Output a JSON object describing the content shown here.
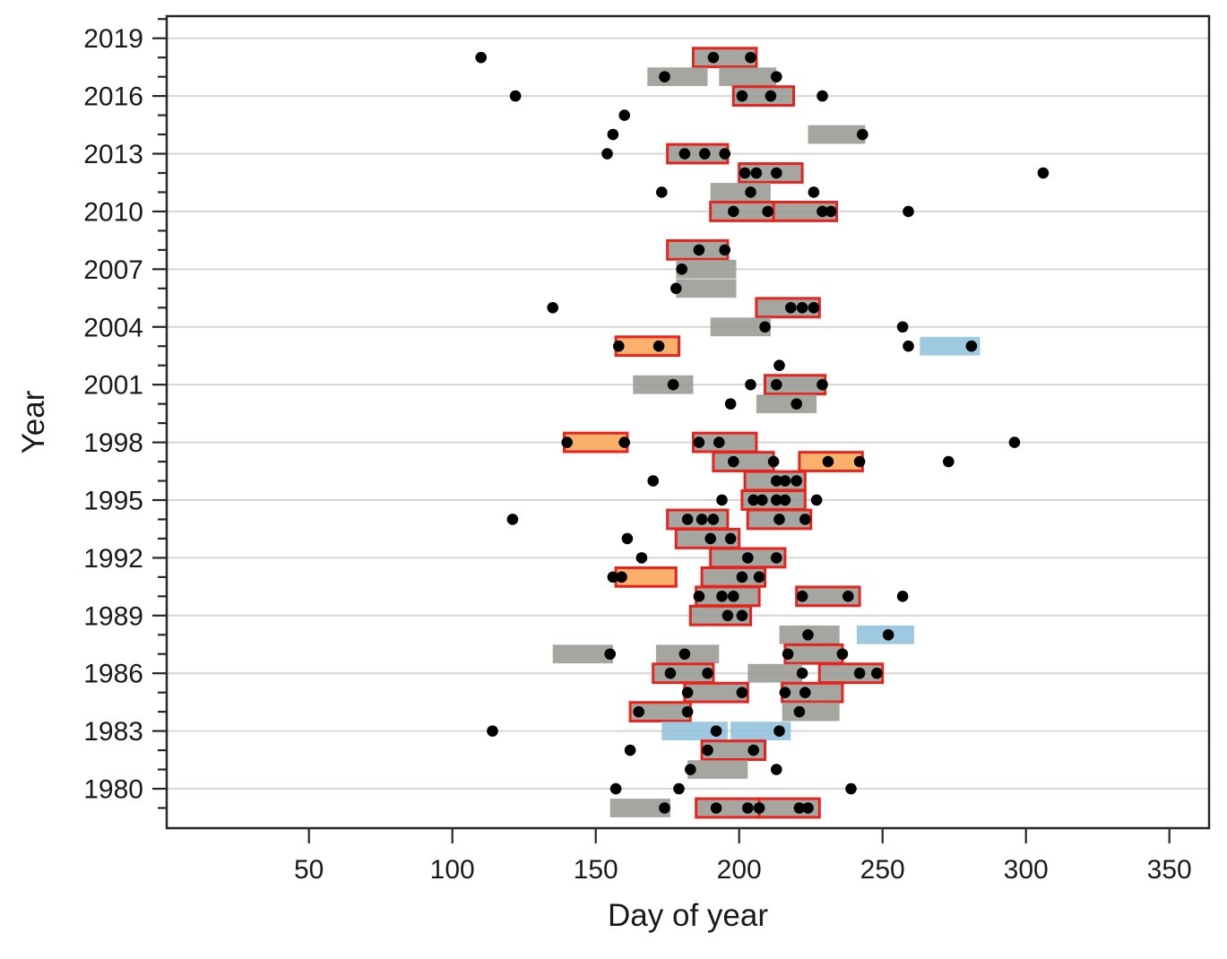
{
  "chart_data": {
    "type": "scatter",
    "subtype": "event-range-timeline",
    "title": "",
    "xlabel": "Day of year",
    "ylabel": "Year",
    "xlim": [
      0,
      364
    ],
    "ylim": [
      1977.9,
      2020.15
    ],
    "grid": "horizontal-only",
    "legend": "none",
    "x_ticks": [
      50,
      100,
      150,
      200,
      250,
      300,
      350
    ],
    "y_major_ticks": [
      2019,
      2016,
      2013,
      2010,
      2007,
      2004,
      2001,
      1998,
      1995,
      1992,
      1989,
      1986,
      1983,
      1980
    ],
    "y_minor_tick_years": [
      1979,
      2020
    ],
    "colors": {
      "gray_fill": "#9A9A94",
      "orange_fill": "#FBA657",
      "blue_fill": "#92C0DD",
      "red_outline": "#E8231D",
      "point": "#000000",
      "gridline": "#D6D6D6",
      "axis": "#262626"
    },
    "years": [
      {
        "year": 2018,
        "rects": [
          {
            "start": 184,
            "end": 206,
            "fill": "gray",
            "outlined": true
          }
        ],
        "points": [
          110,
          191,
          204
        ]
      },
      {
        "year": 2017,
        "rects": [
          {
            "start": 168,
            "end": 189,
            "fill": "gray",
            "outlined": false
          },
          {
            "start": 193,
            "end": 213,
            "fill": "gray",
            "outlined": false
          }
        ],
        "points": [
          174,
          213
        ]
      },
      {
        "year": 2016,
        "rects": [
          {
            "start": 198,
            "end": 219,
            "fill": "gray",
            "outlined": true
          }
        ],
        "points": [
          122,
          201,
          211,
          229
        ]
      },
      {
        "year": 2015,
        "rects": [],
        "points": [
          160
        ]
      },
      {
        "year": 2014,
        "rects": [
          {
            "start": 224,
            "end": 244,
            "fill": "gray",
            "outlined": false
          }
        ],
        "points": [
          156,
          243
        ]
      },
      {
        "year": 2013,
        "rects": [
          {
            "start": 175,
            "end": 196,
            "fill": "gray",
            "outlined": true
          }
        ],
        "points": [
          154,
          181,
          188,
          195
        ]
      },
      {
        "year": 2012,
        "rects": [
          {
            "start": 200,
            "end": 222,
            "fill": "gray",
            "outlined": true
          }
        ],
        "points": [
          202,
          206,
          213,
          306
        ]
      },
      {
        "year": 2011,
        "rects": [
          {
            "start": 190,
            "end": 211,
            "fill": "gray",
            "outlined": false
          }
        ],
        "points": [
          173,
          204,
          226
        ]
      },
      {
        "year": 2010,
        "rects": [
          {
            "start": 190,
            "end": 212,
            "fill": "gray",
            "outlined": true
          },
          {
            "start": 212,
            "end": 234,
            "fill": "gray",
            "outlined": true
          }
        ],
        "points": [
          198,
          210,
          229,
          232,
          259
        ]
      },
      {
        "year": 2008,
        "rects": [
          {
            "start": 175,
            "end": 196,
            "fill": "gray",
            "outlined": true
          }
        ],
        "points": [
          186,
          195
        ]
      },
      {
        "year": 2007,
        "rects": [
          {
            "start": 178,
            "end": 199,
            "fill": "gray",
            "outlined": false
          }
        ],
        "points": [
          180
        ]
      },
      {
        "year": 2006,
        "rects": [
          {
            "start": 178,
            "end": 199,
            "fill": "gray",
            "outlined": false
          }
        ],
        "points": [
          178
        ]
      },
      {
        "year": 2005,
        "rects": [
          {
            "start": 206,
            "end": 228,
            "fill": "gray",
            "outlined": true
          }
        ],
        "points": [
          135,
          218,
          222,
          226
        ]
      },
      {
        "year": 2004,
        "rects": [
          {
            "start": 190,
            "end": 211,
            "fill": "gray",
            "outlined": false
          }
        ],
        "points": [
          209,
          257
        ]
      },
      {
        "year": 2003,
        "rects": [
          {
            "start": 157,
            "end": 179,
            "fill": "orange",
            "outlined": true
          },
          {
            "start": 263,
            "end": 284,
            "fill": "blue",
            "outlined": false
          }
        ],
        "points": [
          158,
          172,
          259,
          281
        ]
      },
      {
        "year": 2002,
        "rects": [],
        "points": [
          214
        ]
      },
      {
        "year": 2001,
        "rects": [
          {
            "start": 163,
            "end": 184,
            "fill": "gray",
            "outlined": false
          },
          {
            "start": 209,
            "end": 230,
            "fill": "gray",
            "outlined": true
          }
        ],
        "points": [
          177,
          204,
          213,
          229
        ]
      },
      {
        "year": 2000,
        "rects": [
          {
            "start": 206,
            "end": 227,
            "fill": "gray",
            "outlined": false
          }
        ],
        "points": [
          197,
          220
        ]
      },
      {
        "year": 1998,
        "rects": [
          {
            "start": 139,
            "end": 161,
            "fill": "orange",
            "outlined": true
          },
          {
            "start": 184,
            "end": 206,
            "fill": "gray",
            "outlined": true
          }
        ],
        "points": [
          140,
          160,
          186,
          193,
          296
        ]
      },
      {
        "year": 1997,
        "rects": [
          {
            "start": 191,
            "end": 212,
            "fill": "gray",
            "outlined": true
          },
          {
            "start": 221,
            "end": 243,
            "fill": "orange",
            "outlined": true
          }
        ],
        "points": [
          198,
          212,
          231,
          242,
          273
        ]
      },
      {
        "year": 1996,
        "rects": [
          {
            "start": 202,
            "end": 223,
            "fill": "gray",
            "outlined": true
          }
        ],
        "points": [
          170,
          213,
          216,
          220
        ]
      },
      {
        "year": 1995,
        "rects": [
          {
            "start": 201,
            "end": 223,
            "fill": "gray",
            "outlined": true
          }
        ],
        "points": [
          194,
          205,
          208,
          213,
          216,
          227
        ]
      },
      {
        "year": 1994,
        "rects": [
          {
            "start": 175,
            "end": 196,
            "fill": "gray",
            "outlined": true
          },
          {
            "start": 203,
            "end": 225,
            "fill": "gray",
            "outlined": true
          }
        ],
        "points": [
          121,
          182,
          187,
          191,
          214,
          223
        ]
      },
      {
        "year": 1993,
        "rects": [
          {
            "start": 178,
            "end": 200,
            "fill": "gray",
            "outlined": true
          }
        ],
        "points": [
          161,
          190,
          197
        ]
      },
      {
        "year": 1992,
        "rects": [
          {
            "start": 190,
            "end": 216,
            "fill": "gray",
            "outlined": true
          }
        ],
        "points": [
          166,
          203,
          213
        ]
      },
      {
        "year": 1991,
        "rects": [
          {
            "start": 157,
            "end": 178,
            "fill": "orange",
            "outlined": true
          },
          {
            "start": 187,
            "end": 209,
            "fill": "gray",
            "outlined": true
          }
        ],
        "points": [
          156,
          159,
          201,
          207
        ]
      },
      {
        "year": 1990,
        "rects": [
          {
            "start": 185,
            "end": 207,
            "fill": "gray",
            "outlined": true
          },
          {
            "start": 220,
            "end": 242,
            "fill": "gray",
            "outlined": true
          }
        ],
        "points": [
          186,
          194,
          198,
          222,
          238,
          257
        ]
      },
      {
        "year": 1989,
        "rects": [
          {
            "start": 183,
            "end": 204,
            "fill": "gray",
            "outlined": true
          }
        ],
        "points": [
          196,
          201
        ]
      },
      {
        "year": 1988,
        "rects": [
          {
            "start": 214,
            "end": 235,
            "fill": "gray",
            "outlined": false
          },
          {
            "start": 241,
            "end": 261,
            "fill": "blue",
            "outlined": false
          }
        ],
        "points": [
          224,
          252
        ]
      },
      {
        "year": 1987,
        "rects": [
          {
            "start": 135,
            "end": 156,
            "fill": "gray",
            "outlined": false
          },
          {
            "start": 171,
            "end": 193,
            "fill": "gray",
            "outlined": false
          },
          {
            "start": 216,
            "end": 236,
            "fill": "gray",
            "outlined": true
          }
        ],
        "points": [
          155,
          181,
          217,
          236
        ]
      },
      {
        "year": 1986,
        "rects": [
          {
            "start": 170,
            "end": 191,
            "fill": "gray",
            "outlined": true
          },
          {
            "start": 203,
            "end": 222,
            "fill": "gray",
            "outlined": false
          },
          {
            "start": 228,
            "end": 250,
            "fill": "gray",
            "outlined": true
          }
        ],
        "points": [
          176,
          189,
          222,
          242,
          248
        ]
      },
      {
        "year": 1985,
        "rects": [
          {
            "start": 181,
            "end": 203,
            "fill": "gray",
            "outlined": true
          },
          {
            "start": 215,
            "end": 236,
            "fill": "gray",
            "outlined": true
          }
        ],
        "points": [
          182,
          201,
          216,
          223
        ]
      },
      {
        "year": 1984,
        "rects": [
          {
            "start": 162,
            "end": 183,
            "fill": "gray",
            "outlined": true
          },
          {
            "start": 215,
            "end": 235,
            "fill": "gray",
            "outlined": false
          }
        ],
        "points": [
          165,
          182,
          221
        ]
      },
      {
        "year": 1983,
        "rects": [
          {
            "start": 173,
            "end": 196,
            "fill": "blue",
            "outlined": false
          },
          {
            "start": 197,
            "end": 218,
            "fill": "blue",
            "outlined": false
          }
        ],
        "points": [
          114,
          192,
          214
        ]
      },
      {
        "year": 1982,
        "rects": [
          {
            "start": 187,
            "end": 209,
            "fill": "gray",
            "outlined": true
          }
        ],
        "points": [
          162,
          189,
          205
        ]
      },
      {
        "year": 1981,
        "rects": [
          {
            "start": 182,
            "end": 203,
            "fill": "gray",
            "outlined": false
          }
        ],
        "points": [
          183,
          213
        ]
      },
      {
        "year": 1980,
        "rects": [],
        "points": [
          157,
          179,
          239
        ]
      },
      {
        "year": 1979,
        "rects": [
          {
            "start": 155,
            "end": 176,
            "fill": "gray",
            "outlined": false
          },
          {
            "start": 185,
            "end": 207,
            "fill": "gray",
            "outlined": true
          },
          {
            "start": 207,
            "end": 228,
            "fill": "gray",
            "outlined": true
          }
        ],
        "points": [
          174,
          192,
          203,
          207,
          221,
          224
        ]
      }
    ]
  },
  "labels": {
    "x_axis_title": "Day of year",
    "y_axis_title": "Year"
  }
}
